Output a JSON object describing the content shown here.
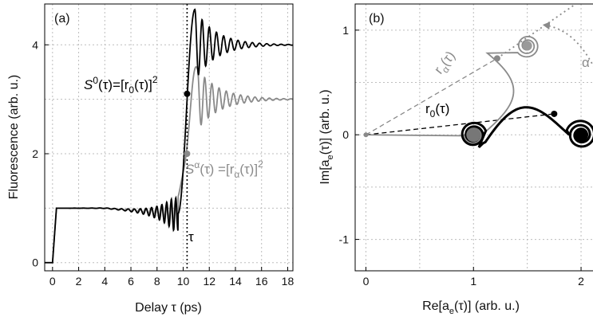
{
  "chart_data": [
    {
      "panel": "(a)",
      "type": "line",
      "xlabel": "Delay τ (ps)",
      "ylabel": "Fluorescence (arb. u.)",
      "xlim": [
        -0.6,
        18.4
      ],
      "ylim": [
        -0.15,
        4.75
      ],
      "xticks": [
        "0",
        "2",
        "4",
        "6",
        "8",
        "10",
        "12",
        "14",
        "16",
        "18"
      ],
      "yticks": [
        "0",
        "2",
        "4"
      ],
      "grid": "dotted",
      "series": [
        {
          "color": "#000000",
          "x": [
            -0.5,
            0.0,
            0.1,
            0.3,
            2.0,
            4.0,
            6.0,
            7.0,
            8.0,
            8.5,
            9.0,
            9.3,
            9.8,
            10.2,
            10.6,
            10.9,
            11.2,
            12.0,
            13.0,
            14.0,
            15.0,
            16.0,
            18.3
          ],
          "y": [
            0.0,
            0.0,
            0.6,
            1.0,
            1.0,
            1.0,
            0.95,
            0.9,
            0.8,
            1.1,
            0.74,
            1.2,
            2.2,
            3.1,
            3.9,
            4.7,
            3.6,
            4.35,
            3.8,
            4.08,
            3.97,
            4.0,
            4.0
          ]
        },
        {
          "color": "#8a8a8a",
          "x": [
            0.0,
            0.3,
            2.0,
            4.0,
            6.0,
            7.0,
            8.0,
            8.8,
            9.3,
            9.8,
            10.2,
            10.5,
            10.8,
            11.1,
            11.4,
            12.0,
            13.0,
            14.0,
            15.0,
            18.3
          ],
          "y": [
            0.0,
            1.0,
            1.0,
            1.0,
            0.97,
            0.93,
            0.9,
            1.2,
            1.35,
            1.72,
            1.95,
            2.1,
            2.55,
            3.6,
            2.5,
            3.25,
            2.85,
            3.05,
            2.98,
            3.0
          ]
        }
      ],
      "markers": [
        {
          "x": 10.3,
          "y": 3.1,
          "color": "#000000"
        },
        {
          "x": 10.3,
          "y": 2.0,
          "color": "#8a8a8a"
        }
      ],
      "vline": {
        "x": 10.3,
        "label": "τ"
      },
      "annotations": {
        "s0_lhs": "S",
        "s0_sup": "0",
        "s0_mid": "(τ)=[r",
        "s0_sub": "0",
        "s0_tail": "(τ)]",
        "s0_sq": "2",
        "sa_lhs": "S",
        "sa_sup": "α",
        "sa_mid": "(τ) =[r",
        "sa_sub": "α",
        "sa_tail": "(τ)]",
        "sa_sq": "2"
      }
    },
    {
      "panel": "(b)",
      "type": "line",
      "xlabel": "Re[aₑ(τ)]  (arb. u.)",
      "ylabel": "Im[aₑ(τ)]  (arb. u.)",
      "xlabel_parts": {
        "pre": "Re[a",
        "sub": "e",
        "post": "(τ)]  (arb. u.)"
      },
      "ylabel_parts": {
        "pre": "Im[a",
        "sub": "e",
        "post": "(τ)]  (arb. u.)"
      },
      "xlim": [
        -0.1,
        2.2
      ],
      "ylim": [
        -1.3,
        1.25
      ],
      "xticks": [
        "0",
        "1",
        "2"
      ],
      "yticks": [
        "-1",
        "0",
        "1"
      ],
      "grid": "dotted",
      "curves": [
        {
          "name_label": "r₀(τ)",
          "color": "#000000",
          "spiral_centers": [
            [
              1.0,
              0.0
            ],
            [
              2.0,
              0.0
            ]
          ]
        },
        {
          "name_label": "rα(τ)",
          "color": "#8a8a8a",
          "spiral_centers": [
            [
              1.0,
              0.0
            ],
            [
              1.5,
              0.85
            ]
          ]
        }
      ],
      "vectors": [
        {
          "label_main": "r",
          "label_sub": "0",
          "label_tail": "(τ)",
          "from": [
            0,
            0
          ],
          "to": [
            1.75,
            0.2
          ],
          "color": "#000000"
        },
        {
          "label_main": "r",
          "label_sub": "α",
          "label_tail": "(τ)",
          "from": [
            0,
            0
          ],
          "to": [
            1.22,
            0.73
          ],
          "color": "#8a8a8a"
        }
      ],
      "angle_label": "α"
    }
  ]
}
